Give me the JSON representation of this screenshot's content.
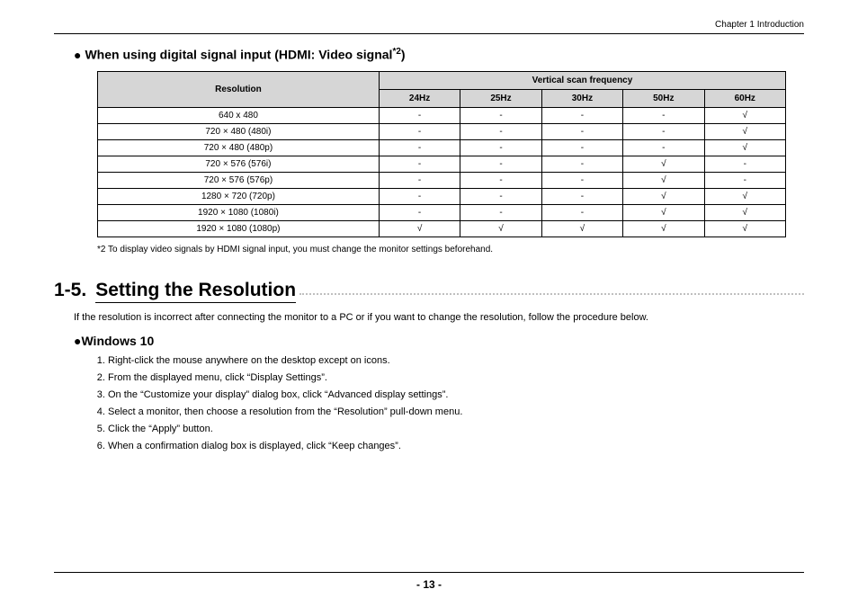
{
  "chapter": "Chapter 1   Introduction",
  "subhead": {
    "bullet": "●",
    "prefix": "When using digital signal input (HDMI: Video signal",
    "sup": "*2",
    "suffix": ")"
  },
  "table": {
    "res_header": "Resolution",
    "freq_header": "Vertical scan frequency",
    "cols": [
      "24Hz",
      "25Hz",
      "30Hz",
      "50Hz",
      "60Hz"
    ],
    "header_bg": "#d6d6d6",
    "border_color": "#000000",
    "font_size": 10,
    "check": "√",
    "dash": "-",
    "rows": [
      {
        "res": "640 x 480",
        "v": [
          "-",
          "-",
          "-",
          "-",
          "√"
        ]
      },
      {
        "res": "720 × 480 (480i)",
        "v": [
          "-",
          "-",
          "-",
          "-",
          "√"
        ]
      },
      {
        "res": "720 × 480 (480p)",
        "v": [
          "-",
          "-",
          "-",
          "-",
          "√"
        ]
      },
      {
        "res": "720 × 576 (576i)",
        "v": [
          "-",
          "-",
          "-",
          "√",
          "-"
        ]
      },
      {
        "res": "720 × 576 (576p)",
        "v": [
          "-",
          "-",
          "-",
          "√",
          "-"
        ]
      },
      {
        "res": "1280 × 720 (720p)",
        "v": [
          "-",
          "-",
          "-",
          "√",
          "√"
        ]
      },
      {
        "res": "1920 × 1080 (1080i)",
        "v": [
          "-",
          "-",
          "-",
          "√",
          "√"
        ]
      },
      {
        "res": "1920 × 1080 (1080p)",
        "v": [
          "√",
          "√",
          "√",
          "√",
          "√"
        ]
      }
    ]
  },
  "footnote": "*2  To display video signals by HDMI signal input, you must change the monitor settings beforehand.",
  "section": {
    "num": "1-5.",
    "title": "Setting the Resolution"
  },
  "intro": "If the resolution is incorrect after connecting the monitor to a PC or if you want to change the resolution, follow the procedure below.",
  "win": {
    "bullet": "●",
    "title": "Windows 10"
  },
  "steps": [
    "Right-click the mouse anywhere on the desktop except on icons.",
    "From the displayed menu, click “Display Settings”.",
    "On the “Customize your display” dialog box, click “Advanced display settings”.",
    "Select a monitor, then choose a resolution from the “Resolution” pull-down menu.",
    "Click the “Apply” button.",
    "When a confirmation dialog box is displayed, click “Keep changes”."
  ],
  "page_num": "- 13 -",
  "colors": {
    "page_bg": "#ffffff",
    "text": "#000000",
    "dots": "#bfbfbf"
  }
}
